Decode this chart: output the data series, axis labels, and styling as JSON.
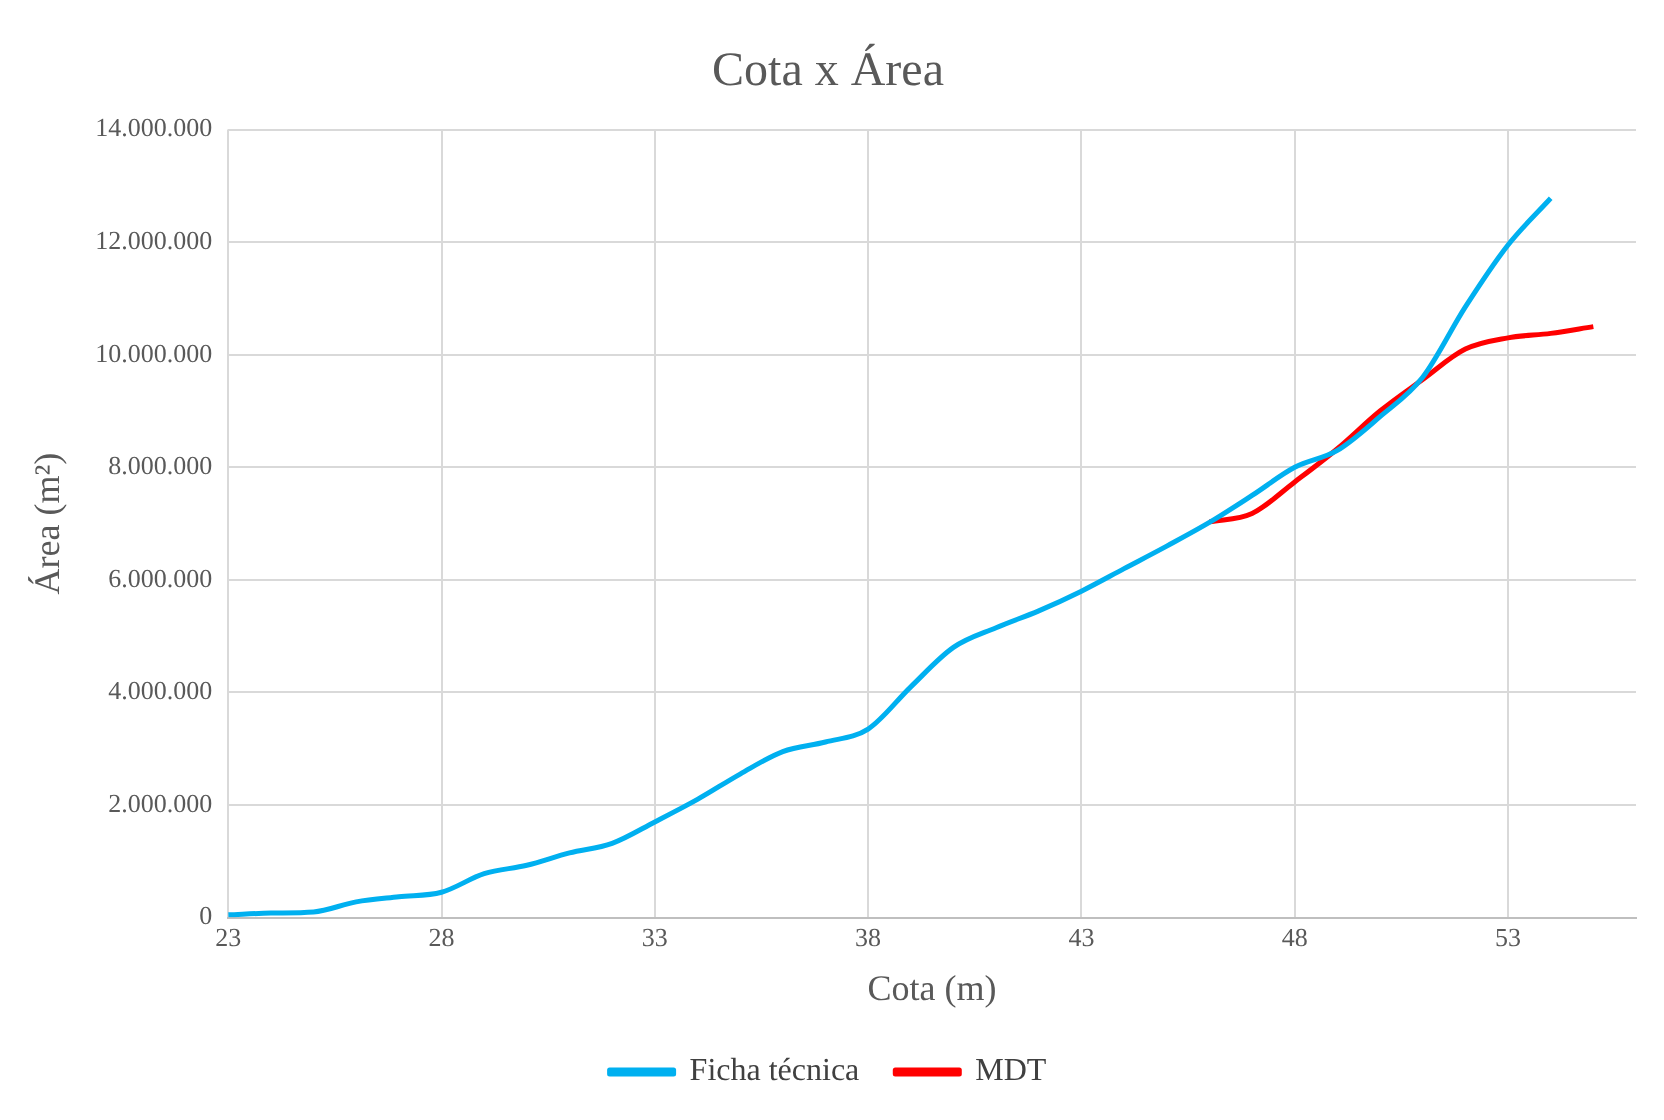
{
  "chart_data": {
    "type": "line",
    "title": "Cota x Área",
    "xlabel": "Cota (m)",
    "ylabel": "Área (m²)",
    "xlim": [
      23,
      56
    ],
    "xticks": [
      23,
      28,
      33,
      38,
      43,
      48,
      53
    ],
    "ylim": [
      0,
      14000000
    ],
    "yticks": [
      {
        "value": 0,
        "label": "0"
      },
      {
        "value": 2000000,
        "label": "2.000.000"
      },
      {
        "value": 4000000,
        "label": "4.000.000"
      },
      {
        "value": 6000000,
        "label": "6.000.000"
      },
      {
        "value": 8000000,
        "label": "8.000.000"
      },
      {
        "value": 10000000,
        "label": "10.000.000"
      },
      {
        "value": 12000000,
        "label": "12.000.000"
      },
      {
        "value": 14000000,
        "label": "14.000.000"
      }
    ],
    "grid": true,
    "legend": "bottom",
    "marker": "none",
    "line_style": "solid",
    "series": [
      {
        "name": "Ficha técnica",
        "color": "#00b0f0",
        "x": [
          23,
          24,
          25,
          26,
          27,
          28,
          29,
          30,
          31,
          32,
          33,
          34,
          35,
          36,
          37,
          38,
          39,
          40,
          41,
          42,
          43,
          44,
          45,
          46,
          47,
          48,
          49,
          50,
          51,
          52,
          53,
          54
        ],
        "values": [
          50000,
          80000,
          100000,
          280000,
          370000,
          450000,
          780000,
          930000,
          1150000,
          1320000,
          1700000,
          2100000,
          2550000,
          2950000,
          3120000,
          3350000,
          4100000,
          4800000,
          5150000,
          5450000,
          5800000,
          6200000,
          6600000,
          7020000,
          7500000,
          8000000,
          8300000,
          8900000,
          9600000,
          10850000,
          11950000,
          12780000
        ]
      },
      {
        "name": "MDT",
        "color": "#ff0000",
        "x": [
          46,
          47,
          48,
          49,
          50,
          51,
          52,
          53,
          54,
          55
        ],
        "values": [
          7030000,
          7180000,
          7740000,
          8330000,
          9000000,
          9560000,
          10100000,
          10300000,
          10380000,
          10500000
        ]
      }
    ]
  }
}
